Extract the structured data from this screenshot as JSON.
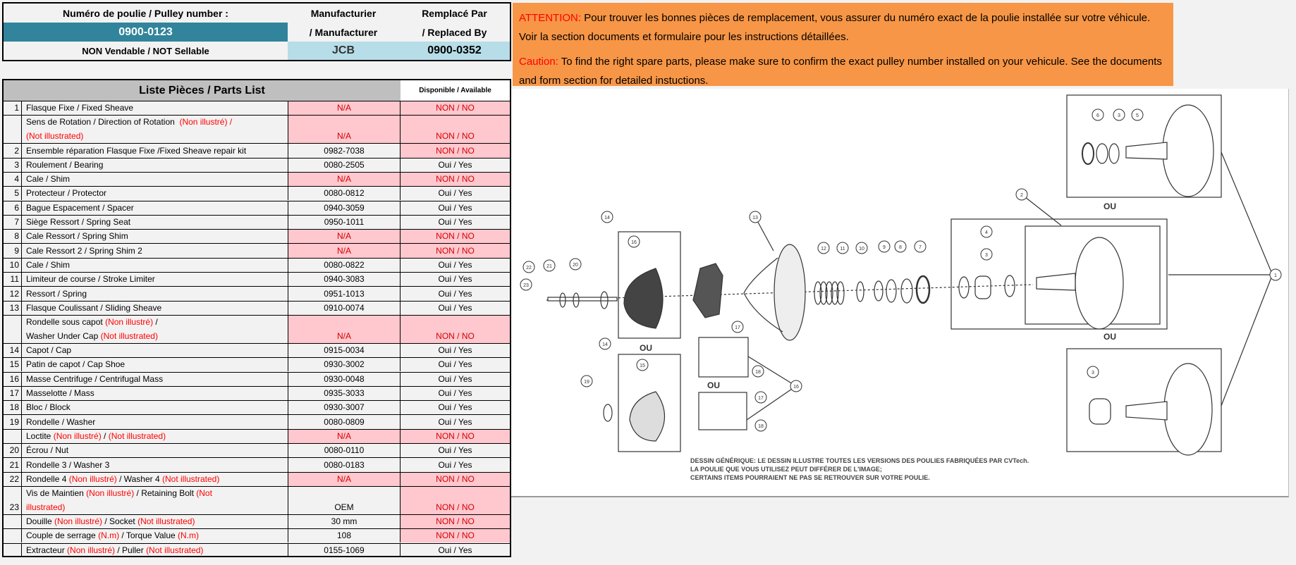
{
  "header": {
    "pulley_label": "Numéro de poulie / Pulley number :",
    "pulley_number": "0900-0123",
    "sellable": "NON Vendable / NOT Sellable",
    "manufacturer_label_1": "Manufacturier",
    "manufacturer_label_2": "/ Manufacturer",
    "manufacturer": "JCB",
    "replaced_label_1": "Remplacé Par",
    "replaced_label_2": "/ Replaced By",
    "replaced_by": "0900-0352"
  },
  "parts_list": {
    "title": "Liste Pièces / Parts List",
    "available_header": "Disponible / Available",
    "rows": [
      {
        "num": "1",
        "desc": [
          {
            "t": "Flasque Fixe / Fixed Sheave"
          }
        ],
        "part": "N/A",
        "avail": "NON / NO",
        "pp": true,
        "pa": true
      },
      {
        "num": "",
        "lines": 2,
        "desc": [
          {
            "t": "Sens de Rotation / Direction of Rotation  "
          },
          {
            "t": "(Non illustré) /",
            "r": true
          },
          {
            "br": true
          },
          {
            "t": "(Not illustrated)",
            "r": true
          }
        ],
        "part": "N/A",
        "avail": "NON / NO",
        "pp": true,
        "pa": true
      },
      {
        "num": "2",
        "desc": [
          {
            "t": "Ensemble réparation Flasque Fixe /Fixed Sheave repair kit"
          }
        ],
        "part": "0982-7038",
        "avail": "NON / NO",
        "pp": false,
        "pa": true
      },
      {
        "num": "3",
        "desc": [
          {
            "t": "Roulement / Bearing"
          }
        ],
        "part": "0080-2505",
        "avail": "Oui / Yes"
      },
      {
        "num": "4",
        "desc": [
          {
            "t": "Cale / Shim"
          }
        ],
        "part": "N/A",
        "avail": "NON / NO",
        "pp": true,
        "pa": true
      },
      {
        "num": "5",
        "desc": [
          {
            "t": "Protecteur / Protector"
          }
        ],
        "part": "0080-0812",
        "avail": "Oui / Yes"
      },
      {
        "num": "6",
        "desc": [
          {
            "t": "Bague Espacement / Spacer"
          }
        ],
        "part": "0940-3059",
        "avail": "Oui / Yes"
      },
      {
        "num": "7",
        "desc": [
          {
            "t": "Siège Ressort / Spring Seat"
          }
        ],
        "part": "0950-1011",
        "avail": "Oui / Yes"
      },
      {
        "num": "8",
        "desc": [
          {
            "t": "Cale Ressort / Spring Shim"
          }
        ],
        "part": "N/A",
        "avail": "NON / NO",
        "pp": true,
        "pa": true
      },
      {
        "num": "9",
        "desc": [
          {
            "t": "Cale Ressort 2 / Spring Shim 2"
          }
        ],
        "part": "N/A",
        "avail": "NON / NO",
        "pp": true,
        "pa": true
      },
      {
        "num": "10",
        "desc": [
          {
            "t": "Cale / Shim"
          }
        ],
        "part": "0080-0822",
        "avail": "Oui / Yes"
      },
      {
        "num": "11",
        "desc": [
          {
            "t": "Limiteur de course / Stroke Limiter"
          }
        ],
        "part": "0940-3083",
        "avail": "Oui / Yes"
      },
      {
        "num": "12",
        "desc": [
          {
            "t": "Ressort / Spring"
          }
        ],
        "part": "0951-1013",
        "avail": "Oui / Yes"
      },
      {
        "num": "13",
        "desc": [
          {
            "t": "Flasque Coulissant / Sliding Sheave"
          }
        ],
        "part": "0910-0074",
        "avail": "Oui / Yes"
      },
      {
        "num": "",
        "lines": 2,
        "desc": [
          {
            "t": "Rondelle sous capot "
          },
          {
            "t": "(Non illustré)",
            "r": true
          },
          {
            "t": " /"
          },
          {
            "br": true
          },
          {
            "t": "Washer Under Cap "
          },
          {
            "t": "(Not illustrated)",
            "r": true
          }
        ],
        "part": "N/A",
        "avail": "NON / NO",
        "pp": true,
        "pa": true
      },
      {
        "num": "14",
        "desc": [
          {
            "t": "Capot / Cap"
          }
        ],
        "part": "0915-0034",
        "avail": "Oui / Yes"
      },
      {
        "num": "15",
        "desc": [
          {
            "t": "Patin de capot / Cap Shoe"
          }
        ],
        "part": "0930-3002",
        "avail": "Oui / Yes"
      },
      {
        "num": "16",
        "desc": [
          {
            "t": "Masse Centrifuge / Centrifugal Mass"
          }
        ],
        "part": "0930-0048",
        "avail": "Oui / Yes"
      },
      {
        "num": "17",
        "desc": [
          {
            "t": "Masselotte / Mass"
          }
        ],
        "part": "0935-3033",
        "avail": "Oui / Yes"
      },
      {
        "num": "18",
        "desc": [
          {
            "t": "Bloc / Block"
          }
        ],
        "part": "0930-3007",
        "avail": "Oui / Yes"
      },
      {
        "num": "19",
        "desc": [
          {
            "t": "Rondelle / Washer"
          }
        ],
        "part": "0080-0809",
        "avail": "Oui / Yes"
      },
      {
        "num": "",
        "desc": [
          {
            "t": "Loctite "
          },
          {
            "t": "(Non illustré)",
            "r": true
          },
          {
            "t": " / "
          },
          {
            "t": "(Not illustrated)",
            "r": true
          }
        ],
        "part": "N/A",
        "avail": "NON / NO",
        "pp": true,
        "pa": true
      },
      {
        "num": "20",
        "desc": [
          {
            "t": "Écrou / Nut"
          }
        ],
        "part": "0080-0110",
        "avail": "Oui / Yes"
      },
      {
        "num": "21",
        "desc": [
          {
            "t": "Rondelle 3 / Washer 3"
          }
        ],
        "part": "0080-0183",
        "avail": "Oui / Yes"
      },
      {
        "num": "22",
        "desc": [
          {
            "t": "Rondelle 4 "
          },
          {
            "t": "(Non illustré)",
            "r": true
          },
          {
            "t": " / Washer 4 "
          },
          {
            "t": "(Not illustrated)",
            "r": true
          }
        ],
        "part": "N/A",
        "avail": "NON / NO",
        "pp": true,
        "pa": true
      },
      {
        "num": "23",
        "lines": 2,
        "desc": [
          {
            "t": "Vis de Maintien "
          },
          {
            "t": "(Non illustré)",
            "r": true
          },
          {
            "t": " / Retaining Bolt "
          },
          {
            "t": "(Not",
            "r": true
          },
          {
            "br": true
          },
          {
            "t": "illustrated)",
            "r": true
          }
        ],
        "part": "OEM",
        "avail": "NON / NO",
        "pp": false,
        "pa": true
      },
      {
        "num": "",
        "desc": [
          {
            "t": "Douille "
          },
          {
            "t": "(Non illustré)",
            "r": true
          },
          {
            "t": " / Socket "
          },
          {
            "t": "(Not illustrated)",
            "r": true
          }
        ],
        "part": "30 mm",
        "avail": "NON / NO",
        "pp": false,
        "pa": true
      },
      {
        "num": "",
        "desc": [
          {
            "t": "Couple de serrage "
          },
          {
            "t": "(N.m)",
            "r": true
          },
          {
            "t": " / Torque Value "
          },
          {
            "t": "(N.m)",
            "r": true
          }
        ],
        "part": "108",
        "avail": "NON / NO",
        "pp": false,
        "pa": true
      },
      {
        "num": "",
        "desc": [
          {
            "t": "Extracteur "
          },
          {
            "t": "(Non illustré)",
            "r": true
          },
          {
            "t": " / Puller "
          },
          {
            "t": "(Not illustrated)",
            "r": true
          }
        ],
        "part": "0155-1069",
        "avail": "Oui / Yes"
      }
    ]
  },
  "warning": {
    "fr_label": "ATTENTION:",
    "fr_text": " Pour trouver les bonnes pièces de remplacement, vous assurer du numéro exact de la poulie installée sur votre véhicule. Voir la section documents et formulaire pour les instructions détaillées.",
    "en_label": "Caution:",
    "en_text": " To find the right spare parts, please make sure to confirm the exact pulley number installed on your vehicule. See the documents and form section for detailed instuctions."
  },
  "diagram": {
    "or_label": "OU",
    "caption": [
      "DESSIN GÉNÉRIQUE: LE DESSIN ILLUSTRE TOUTES LES VERSIONS DES POULIES FABRIQUÉES PAR CVTech.",
      "LA POULIE QUE VOUS UTILISEZ PEUT DIFFÉRER DE L'IMAGE;",
      "CERTAINS ITEMS POURRAIENT NE PAS SE RETROUVER SUR VOTRE POULIE."
    ],
    "callouts": [
      "14",
      "16",
      "13",
      "22",
      "21",
      "20",
      "23",
      "12",
      "11",
      "10",
      "9",
      "8",
      "7",
      "4",
      "3",
      "2",
      "6",
      "3",
      "5",
      "17",
      "18",
      "16",
      "17",
      "18",
      "14",
      "15",
      "19",
      "3",
      "1"
    ]
  },
  "colors": {
    "teal": "#31849b",
    "light_blue": "#b7dde8",
    "pink": "#ffc7ce",
    "orange": "#f79646",
    "header_gray": "#bfbfbf"
  }
}
